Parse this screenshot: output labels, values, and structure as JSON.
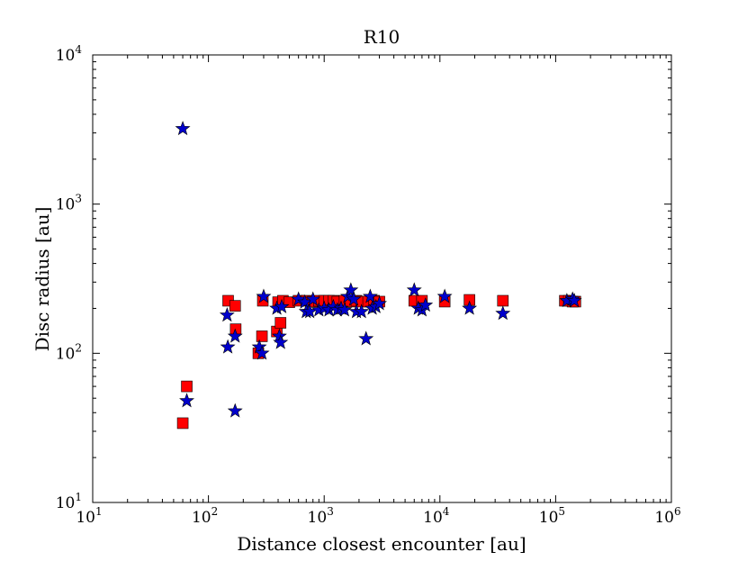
{
  "chart_data": {
    "type": "scatter",
    "title": "R10",
    "xlabel": "Distance closest encounter [au]",
    "ylabel": "Disc radius [au]",
    "xscale": "log",
    "yscale": "log",
    "xlim": [
      10,
      1000000
    ],
    "ylim": [
      10,
      10000
    ],
    "xticks": [
      {
        "base": "10",
        "exp": "1",
        "value": 10
      },
      {
        "base": "10",
        "exp": "2",
        "value": 100
      },
      {
        "base": "10",
        "exp": "3",
        "value": 1000
      },
      {
        "base": "10",
        "exp": "4",
        "value": 10000
      },
      {
        "base": "10",
        "exp": "5",
        "value": 100000
      },
      {
        "base": "10",
        "exp": "6",
        "value": 1000000
      }
    ],
    "yticks": [
      {
        "base": "10",
        "exp": "1",
        "value": 10
      },
      {
        "base": "10",
        "exp": "2",
        "value": 100
      },
      {
        "base": "10",
        "exp": "3",
        "value": 1000
      },
      {
        "base": "10",
        "exp": "4",
        "value": 10000
      }
    ],
    "grid": false,
    "legend": "none",
    "series": [
      {
        "marker": "square",
        "color": "#ff0000",
        "points": [
          [
            60,
            34
          ],
          [
            65,
            60
          ],
          [
            148,
            225
          ],
          [
            170,
            208
          ],
          [
            172,
            145
          ],
          [
            270,
            100
          ],
          [
            290,
            130
          ],
          [
            295,
            225
          ],
          [
            390,
            140
          ],
          [
            400,
            220
          ],
          [
            420,
            160
          ],
          [
            440,
            225
          ],
          [
            500,
            220
          ],
          [
            600,
            225
          ],
          [
            700,
            225
          ],
          [
            800,
            222
          ],
          [
            900,
            225
          ],
          [
            1000,
            225
          ],
          [
            1100,
            225
          ],
          [
            1200,
            225
          ],
          [
            1300,
            222
          ],
          [
            1500,
            225
          ],
          [
            1700,
            222
          ],
          [
            1900,
            225
          ],
          [
            2100,
            222
          ],
          [
            2400,
            222
          ],
          [
            2700,
            225
          ],
          [
            3000,
            222
          ],
          [
            6000,
            225
          ],
          [
            7000,
            225
          ],
          [
            11000,
            222
          ],
          [
            18000,
            228
          ],
          [
            35000,
            225
          ],
          [
            120000,
            225
          ],
          [
            130000,
            225
          ],
          [
            140000,
            222
          ],
          [
            148000,
            222
          ]
        ]
      },
      {
        "marker": "star",
        "color": "#0000cc",
        "points": [
          [
            60,
            3200
          ],
          [
            65,
            48
          ],
          [
            145,
            180
          ],
          [
            147,
            110
          ],
          [
            170,
            41
          ],
          [
            170,
            130
          ],
          [
            275,
            110
          ],
          [
            290,
            100
          ],
          [
            300,
            240
          ],
          [
            390,
            200
          ],
          [
            410,
            130
          ],
          [
            420,
            118
          ],
          [
            430,
            205
          ],
          [
            600,
            230
          ],
          [
            680,
            220
          ],
          [
            700,
            190
          ],
          [
            750,
            190
          ],
          [
            800,
            230
          ],
          [
            900,
            195
          ],
          [
            1000,
            200
          ],
          [
            1100,
            195
          ],
          [
            1200,
            205
          ],
          [
            1300,
            195
          ],
          [
            1400,
            200
          ],
          [
            1500,
            195
          ],
          [
            1600,
            240
          ],
          [
            1700,
            265
          ],
          [
            1800,
            230
          ],
          [
            1900,
            190
          ],
          [
            2100,
            190
          ],
          [
            2300,
            125
          ],
          [
            2500,
            240
          ],
          [
            2600,
            200
          ],
          [
            2800,
            205
          ],
          [
            3000,
            215
          ],
          [
            6000,
            265
          ],
          [
            6500,
            200
          ],
          [
            7000,
            195
          ],
          [
            7500,
            210
          ],
          [
            11000,
            240
          ],
          [
            18000,
            200
          ],
          [
            35000,
            185
          ],
          [
            125000,
            225
          ],
          [
            140000,
            230
          ],
          [
            145000,
            225
          ]
        ]
      }
    ]
  }
}
